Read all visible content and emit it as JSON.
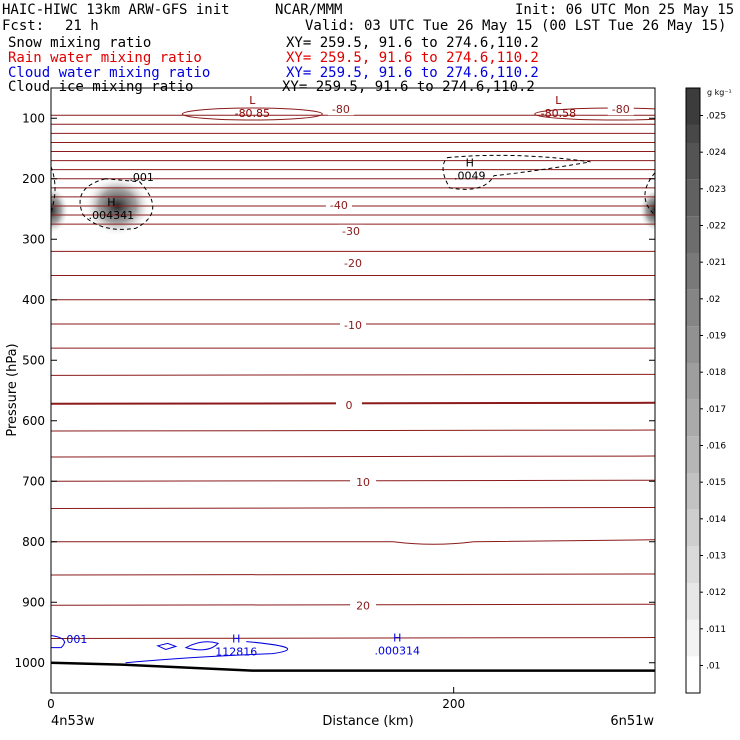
{
  "header": {
    "title": "HAIC-HIWC 13km ARW-GFS init",
    "source": "NCAR/MMM",
    "init": "Init: 06 UTC Mon 25 May 15",
    "fcst_label": "Fcst:",
    "fcst_value": "21 h",
    "valid": "Valid: 03 UTC Tue 26 May 15 (00 LST Tue 26 May 15)"
  },
  "fields": [
    {
      "name": "Snow mixing ratio",
      "xy": "XY= 259.5, 91.6 to 274.6,110.2",
      "color": "#000000"
    },
    {
      "name": "Rain water mixing ratio",
      "xy": "XY= 259.5, 91.6 to 274.6,110.2",
      "color": "#e00000"
    },
    {
      "name": "Cloud water mixing ratio",
      "xy": "XY= 259.5, 91.6 to 274.6,110.2",
      "color": "#0000e0"
    },
    {
      "name": "Cloud ice mixing ratio",
      "xy": "XY= 259.5, 91.6 to 274.6,110.2",
      "color": "#000000"
    }
  ],
  "colorbar": {
    "unit": "g kg⁻¹",
    "ticks": [
      ".01",
      ".011",
      ".012",
      ".013",
      ".014",
      ".015",
      ".016",
      ".017",
      ".018",
      ".019",
      ".02",
      ".021",
      ".022",
      ".023",
      ".024",
      ".025"
    ]
  },
  "chart_data": {
    "type": "contour",
    "xlabel": "Distance (km)",
    "ylabel": "Pressure (hPa)",
    "xlim": [
      0,
      300
    ],
    "ylim": [
      1050,
      50
    ],
    "xticks": [
      0,
      200
    ],
    "yticks": [
      100,
      200,
      300,
      400,
      500,
      600,
      700,
      800,
      900,
      1000
    ],
    "x_endpoints": {
      "left": "4n53w",
      "right": "6n51w"
    },
    "temperature_isotherm_labels": [
      {
        "text": "-80",
        "x": 144,
        "p": 85
      },
      {
        "text": "-80",
        "x": 283,
        "p": 85
      },
      {
        "text": "-40",
        "x": 143,
        "p": 243
      },
      {
        "text": "-30",
        "x": 149,
        "p": 286
      },
      {
        "text": "-20",
        "x": 150,
        "p": 339
      },
      {
        "text": "-10",
        "x": 150,
        "p": 442
      },
      {
        "text": "0",
        "x": 148,
        "p": 574
      },
      {
        "text": "10",
        "x": 155,
        "p": 701
      },
      {
        "text": "20",
        "x": 155,
        "p": 905
      }
    ],
    "extrema_labels": [
      {
        "kind": "L",
        "value": "-80.85",
        "x": 100,
        "p": 90,
        "color": "#8b0000"
      },
      {
        "kind": "L",
        "value": "-80.58",
        "x": 252,
        "p": 90,
        "color": "#8b0000"
      },
      {
        "kind": "H",
        "value": ".0049",
        "x": 208,
        "p": 193,
        "color": "#000000"
      },
      {
        "kind": "H",
        "value": ".004341",
        "x": 30,
        "p": 258,
        "color": "#000000"
      },
      {
        "kind": "H",
        "value": "112816",
        "x": 92,
        "p": 980,
        "color": "#0000e0"
      },
      {
        "kind": "H",
        "value": ".000314",
        "x": 172,
        "p": 978,
        "color": "#0000e0"
      }
    ],
    "contour_labels": [
      {
        "text": ".001",
        "x": 45,
        "p": 197,
        "color": "#000000"
      },
      {
        "text": ".001",
        "x": 12,
        "p": 961,
        "color": "#0000e0"
      }
    ],
    "terrain": [
      [
        0,
        1000
      ],
      [
        35,
        1003
      ],
      [
        100,
        1013
      ],
      [
        300,
        1013
      ]
    ]
  }
}
